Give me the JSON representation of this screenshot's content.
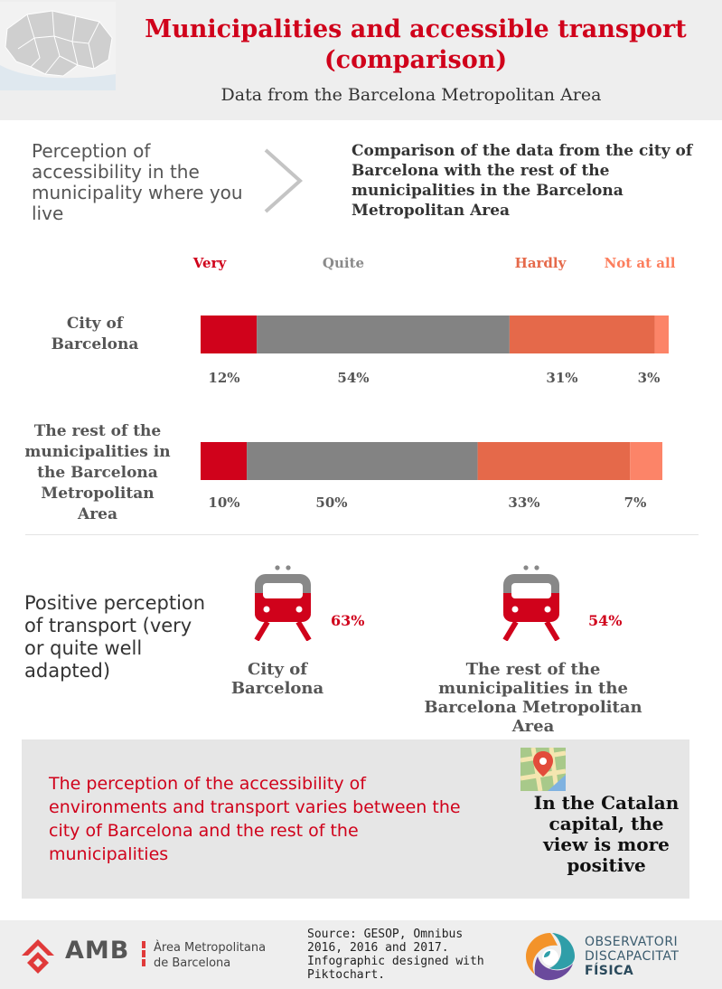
{
  "header": {
    "title": "Municipalities and accessible transport (comparison)",
    "subtitle": "Data from the Barcelona Metropolitan Area"
  },
  "intro": {
    "left_text": "Perception of accessibility in the municipality where you live",
    "right_text": "Comparison of the data from the city of Barcelona with the rest of the municipalities in the Barcelona Metropolitan Area"
  },
  "chart_data": {
    "type": "bar",
    "orientation": "horizontal",
    "stacked": true,
    "categories": [
      "City of Barcelona",
      "The rest of the municipalities in the Barcelona Metropolitan Area"
    ],
    "series": [
      {
        "name": "Very",
        "values": [
          12,
          10
        ],
        "color": "#d0021b"
      },
      {
        "name": "Quite",
        "values": [
          54,
          50
        ],
        "color": "#838383"
      },
      {
        "name": "Hardly",
        "values": [
          31,
          33
        ],
        "color": "#e5694a"
      },
      {
        "name": "Not at all",
        "values": [
          3,
          7
        ],
        "color": "#fc8468"
      }
    ],
    "value_labels": [
      [
        "12%",
        "54%",
        "31%",
        "3%"
      ],
      [
        "10%",
        "50%",
        "33%",
        "7%"
      ]
    ],
    "legend_position": "top",
    "legend_colors": [
      "#d0021b",
      "#8a8a8a",
      "#e5694a",
      "#fc7d5c"
    ],
    "xlim": [
      0,
      100
    ],
    "grid": false
  },
  "transport": {
    "heading": "Positive perception of transport (very or quite well adapted)",
    "items": [
      {
        "label": "City of Barcelona",
        "value": "63%"
      },
      {
        "label": "The rest of the municipalities in the Barcelona Metropolitan Area",
        "value": "54%"
      }
    ],
    "icon": "train-icon",
    "colors": {
      "train_top": "#888888",
      "train_bottom": "#d0021b"
    }
  },
  "conclusion": {
    "text": "The perception of the accessibility of environments and transport varies between the city of Barcelona and the rest of the municipalities",
    "highlight": "In the Catalan capital, the view is more positive",
    "icon": "map-pin-icon"
  },
  "footer": {
    "amb_abbr": "AMB",
    "amb_name": "Àrea Metropolitana de Barcelona",
    "source": "Source:  GESOP, Omnibus 2016, 2016 and 2017. Infographic designed with Piktochart.",
    "obs_line1": "OBSERVATORI",
    "obs_line2": "DISCAPACITAT",
    "obs_line3": "FÍSICA"
  },
  "colors": {
    "accent": "#d0021b",
    "background_band": "#eeeeee",
    "conclusion_box": "#e6e6e6"
  }
}
